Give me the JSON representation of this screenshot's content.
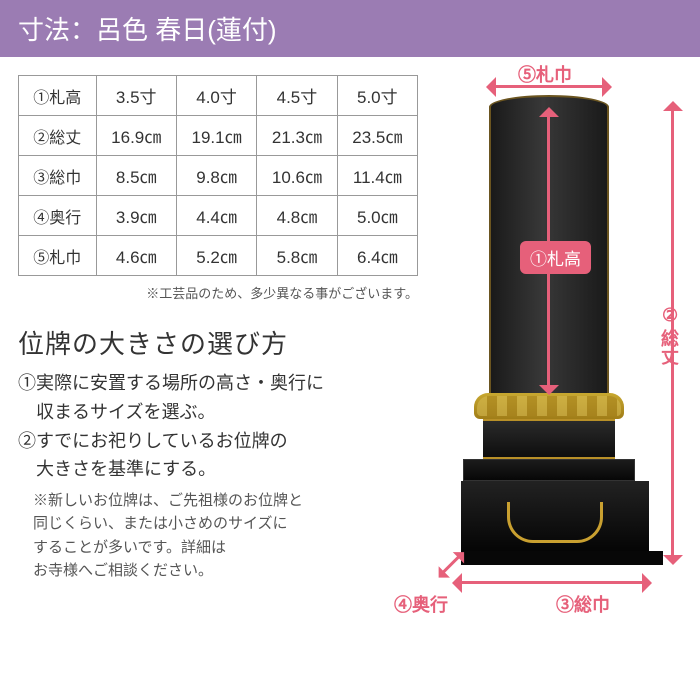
{
  "header": {
    "title": "寸法：呂色 春日(蓮付)"
  },
  "table": {
    "rows": [
      {
        "label": "①札高",
        "c1": "3.5寸",
        "c2": "4.0寸",
        "c3": "4.5寸",
        "c4": "5.0寸"
      },
      {
        "label": "②総丈",
        "c1": "16.9㎝",
        "c2": "19.1㎝",
        "c3": "21.3㎝",
        "c4": "23.5㎝"
      },
      {
        "label": "③総巾",
        "c1": "8.5㎝",
        "c2": "9.8㎝",
        "c3": "10.6㎝",
        "c4": "11.4㎝"
      },
      {
        "label": "④奥行",
        "c1": "3.9㎝",
        "c2": "4.4㎝",
        "c3": "4.8㎝",
        "c4": "5.0㎝"
      },
      {
        "label": "⑤札巾",
        "c1": "4.6㎝",
        "c2": "5.2㎝",
        "c3": "5.8㎝",
        "c4": "6.4㎝"
      }
    ],
    "disclaimer": "※工芸品のため、多少異なる事がございます。"
  },
  "guide": {
    "title": "位牌の大きさの選び方",
    "tip1_l1": "①実際に安置する場所の高さ・奥行に",
    "tip1_l2": "　収まるサイズを選ぶ。",
    "tip2_l1": "②すでにお祀りしているお位牌の",
    "tip2_l2": "　大きさを基準にする。",
    "note_l1": "※新しいお位牌は、ご先祖様のお位牌と",
    "note_l2": "同じくらい、または小さめのサイズに",
    "note_l3": "することが多いです。詳細は",
    "note_l4": "お寺様へご相談ください。"
  },
  "labels": {
    "fudahaba": "⑤札巾",
    "fudadaka": "①札高",
    "soujyo_1": "②",
    "soujyo_2": "総丈",
    "souhaba": "③総巾",
    "okuyuki": "④奥行"
  },
  "colors": {
    "header_bg": "#9b7cb3",
    "arrow": "#e6607a"
  }
}
